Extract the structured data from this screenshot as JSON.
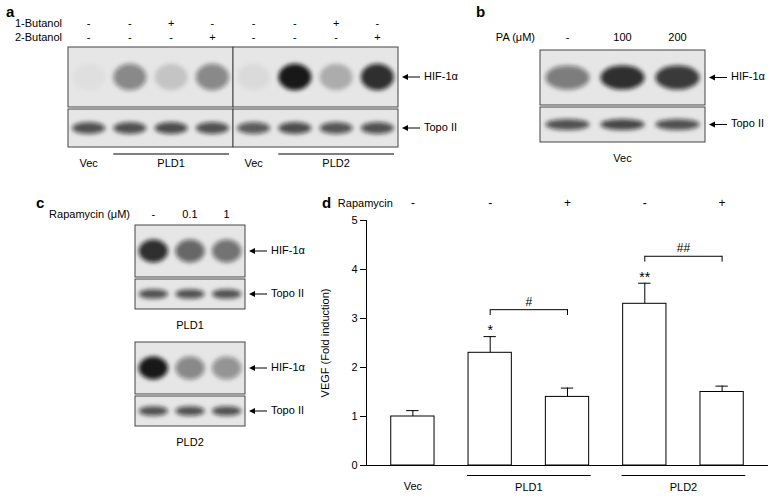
{
  "chart_data": {
    "type": "bar",
    "letter": "d",
    "categories": [
      "Vec",
      null,
      null,
      null,
      null
    ],
    "values": [
      1.0,
      2.3,
      1.4,
      3.3,
      1.5
    ],
    "errors": [
      0.12,
      0.33,
      0.18,
      0.42,
      0.12
    ],
    "color": "#ffffff",
    "ylim": [
      0,
      5
    ],
    "yticks": [
      0,
      1,
      2,
      3,
      4,
      5
    ],
    "ylabel": "VEGF (Fold induction)",
    "treatment": {
      "label": "Rapamycin",
      "signs": [
        "-",
        "-",
        "+",
        "-",
        "+"
      ]
    },
    "groups": [
      {
        "label": "PLD1",
        "from": 1,
        "to": 2
      },
      {
        "label": "PLD2",
        "from": 3,
        "to": 4
      }
    ],
    "marks": [
      {
        "text": "*",
        "index": 1
      },
      {
        "text": "**",
        "index": 3
      }
    ],
    "brackets": [
      {
        "text": "#",
        "from": 1,
        "to": 2
      },
      {
        "text": "##",
        "from": 3,
        "to": 4
      }
    ]
  },
  "blots": [
    {
      "letter": "a",
      "conditions": [
        {
          "label": "1-Butanol",
          "signs": [
            [
              "-",
              "-",
              "+",
              "-"
            ],
            [
              "-",
              "-",
              "+",
              "-"
            ]
          ]
        },
        {
          "label": "2-Butanol",
          "signs": [
            [
              "-",
              "-",
              "-",
              "+"
            ],
            [
              "-",
              "-",
              "-",
              "+"
            ]
          ]
        }
      ],
      "band_labels": [
        "HIF-1α",
        "Topo II"
      ],
      "gels": [
        {
          "bands": [
            [
              0.03,
              0.45,
              0.15,
              0.45
            ],
            [
              0.7,
              0.7,
              0.72,
              0.7
            ]
          ]
        },
        {
          "bands": [
            [
              0.05,
              0.95,
              0.25,
              0.85
            ],
            [
              0.65,
              0.72,
              0.68,
              0.7
            ]
          ]
        }
      ],
      "lane_labels": [
        {
          "label": "Vec",
          "gel": 0,
          "lanes": [
            0,
            0
          ]
        },
        {
          "label": "PLD1",
          "gel": 0,
          "lanes": [
            1,
            3
          ],
          "underline": true
        },
        {
          "label": "Vec",
          "gel": 1,
          "lanes": [
            0,
            0
          ]
        },
        {
          "label": "PLD2",
          "gel": 1,
          "lanes": [
            1,
            3
          ],
          "underline": true
        }
      ]
    },
    {
      "letter": "b",
      "conditions": [
        {
          "label": "PA (μM)",
          "signs": [
            [
              "-",
              "100",
              "200"
            ]
          ]
        }
      ],
      "band_labels": [
        "HIF-1α",
        "Topo II"
      ],
      "gels": [
        {
          "bands": [
            [
              0.5,
              0.85,
              0.8
            ],
            [
              0.7,
              0.75,
              0.7
            ]
          ]
        }
      ],
      "lane_labels": [
        {
          "label": "Vec",
          "gel": 0,
          "lanes": [
            0,
            2
          ]
        }
      ]
    },
    {
      "letter": "c",
      "conditions": [
        {
          "label": "Rapamycin (μM)",
          "signs": [
            [
              "-",
              "0.1",
              "1"
            ]
          ]
        }
      ],
      "band_labels": [
        "HIF-1α",
        "Topo II"
      ],
      "gels": [
        {
          "bands": [
            [
              0.85,
              0.6,
              0.55
            ],
            [
              0.7,
              0.7,
              0.7
            ]
          ]
        },
        {
          "bands": [
            [
              0.95,
              0.45,
              0.4
            ],
            [
              0.7,
              0.7,
              0.7
            ]
          ]
        }
      ],
      "lane_labels": [
        {
          "label": "PLD1",
          "gel": 0,
          "lanes": [
            0,
            2
          ]
        },
        {
          "label": "PLD2",
          "gel": 1,
          "lanes": [
            0,
            2
          ]
        }
      ]
    }
  ]
}
